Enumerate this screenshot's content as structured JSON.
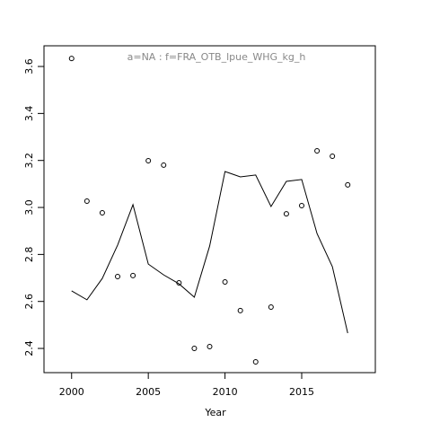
{
  "chart_data": {
    "type": "line",
    "title": "a=NA  :  f=FRA_OTB_lpue_WHG_kg_h",
    "x_label": "Year",
    "x": [
      2000,
      2001,
      2002,
      2003,
      2004,
      2005,
      2006,
      2007,
      2008,
      2009,
      2010,
      2011,
      2012,
      2013,
      2014,
      2015,
      2016,
      2017,
      2018
    ],
    "series": [
      {
        "style": "points",
        "color": "#000000",
        "values": [
          3.634,
          3.027,
          2.977,
          2.706,
          2.71,
          3.199,
          3.18,
          2.679,
          2.4,
          2.408,
          2.683,
          2.561,
          2.343,
          2.576,
          2.973,
          3.008,
          3.241,
          3.218,
          3.096
        ]
      },
      {
        "style": "line",
        "color": "#000000",
        "values": [
          2.645,
          2.607,
          2.698,
          2.84,
          3.012,
          2.759,
          2.713,
          2.675,
          2.618,
          2.836,
          3.153,
          3.13,
          3.138,
          3.004,
          3.111,
          3.119,
          2.889,
          2.748,
          2.465
        ]
      }
    ],
    "xlim": [
      1998.2,
      2019.8
    ],
    "xticks": [
      2000,
      2005,
      2010,
      2015
    ],
    "ylim": [
      2.297,
      3.688
    ],
    "yticks": [
      2.4,
      2.6,
      2.8,
      {
        "value": 3,
        "label": "3.0"
      },
      3.2,
      3.4,
      3.6
    ]
  }
}
